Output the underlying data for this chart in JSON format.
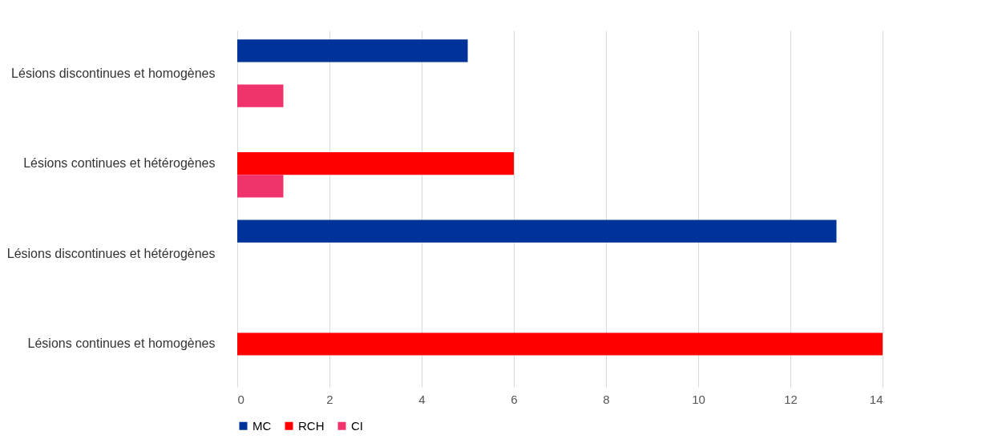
{
  "chart_data": {
    "type": "bar",
    "orientation": "horizontal",
    "categories": [
      "Lésions discontinues et homogènes",
      "Lésions continues et hétérogènes",
      "Lésions discontinues et hétérogènes",
      "Lésions continues et homogènes"
    ],
    "series": [
      {
        "name": "MC",
        "color": "#003399",
        "values": [
          5,
          0,
          13,
          0
        ]
      },
      {
        "name": "RCH",
        "color": "#ff0000",
        "values": [
          0,
          6,
          0,
          14
        ]
      },
      {
        "name": "CI",
        "color": "#f0336a",
        "values": [
          1,
          1,
          0,
          0
        ]
      }
    ],
    "xlim": [
      0,
      14
    ],
    "xticks": [
      0,
      2,
      4,
      6,
      8,
      10,
      12,
      14
    ],
    "grid": "x",
    "legend": "bottom"
  }
}
